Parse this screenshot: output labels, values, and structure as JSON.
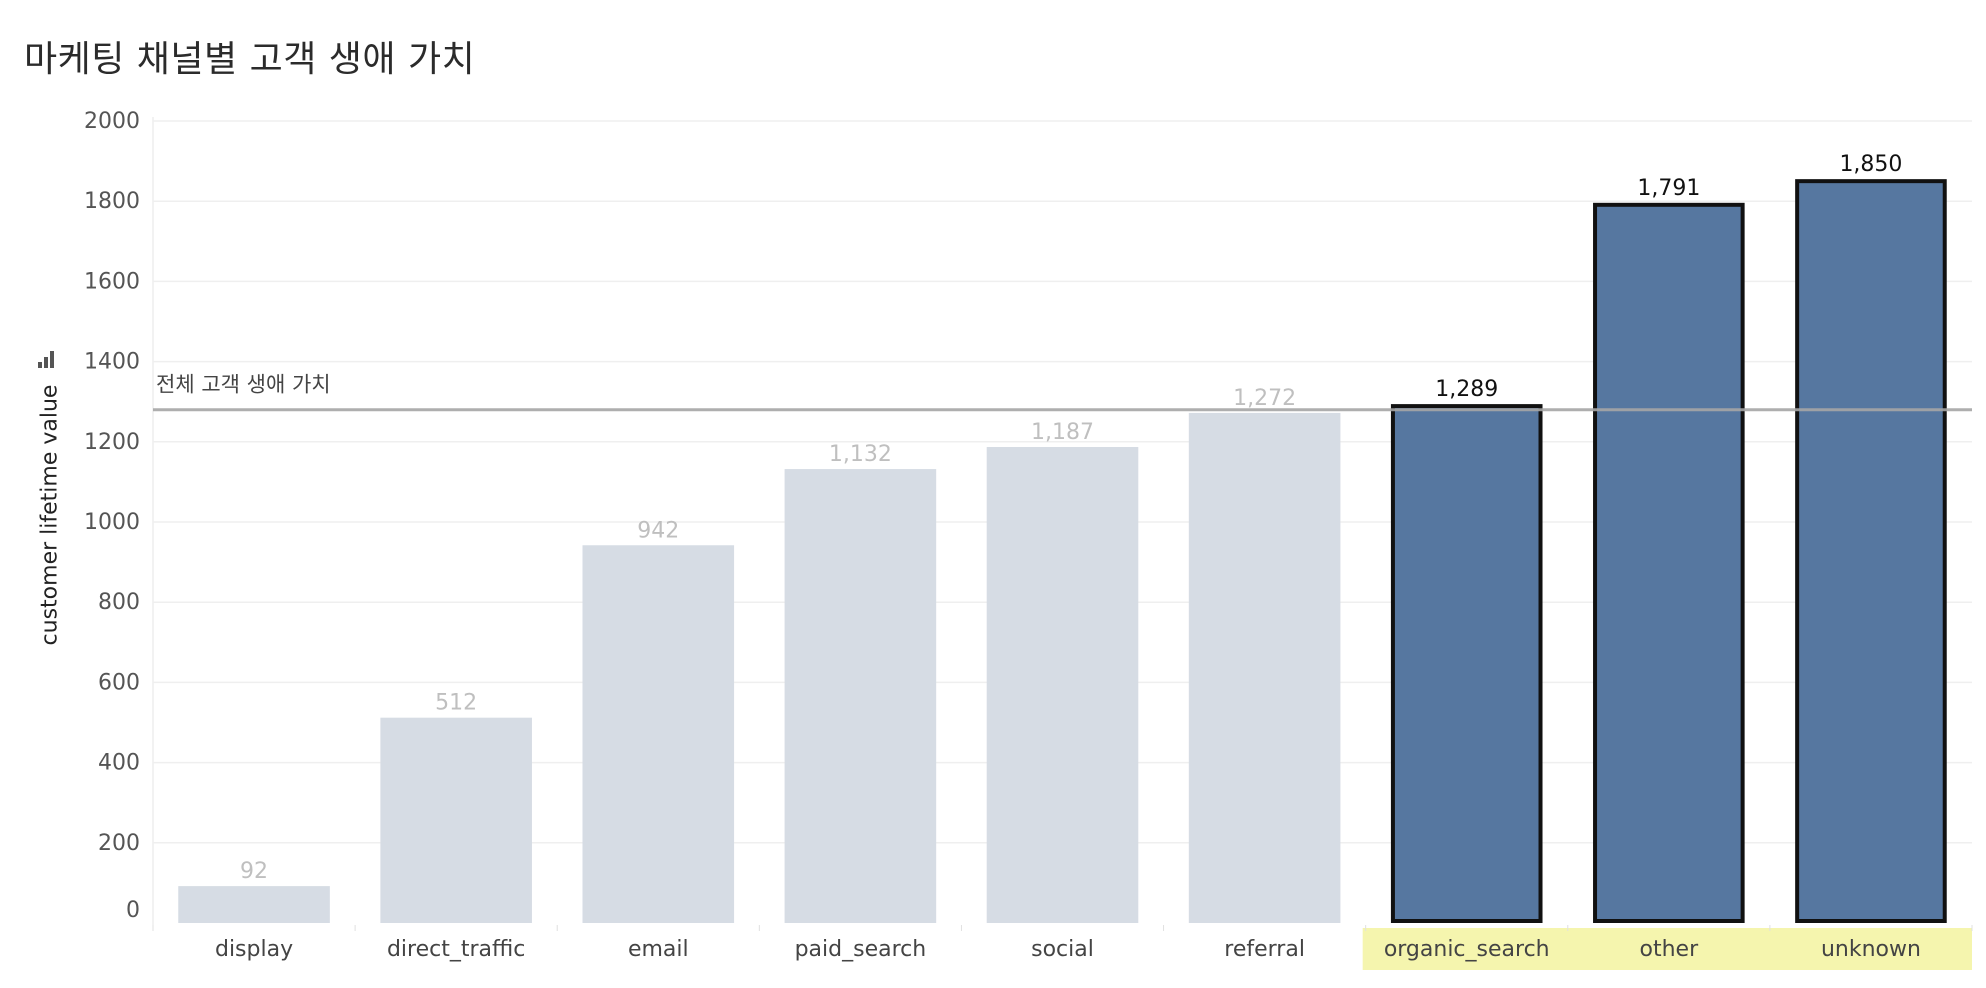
{
  "chart_data": {
    "type": "bar",
    "title": "마케팅 채널별 고객 생애 가치",
    "ylabel": "customer lifetime value",
    "xlabel": "",
    "categories": [
      "display",
      "direct_traffic",
      "email",
      "paid_search",
      "social",
      "referral",
      "organic_search",
      "other",
      "unknown"
    ],
    "values": [
      92,
      512,
      942,
      1132,
      1187,
      1272,
      1289,
      1791,
      1850
    ],
    "value_labels": [
      "92",
      "512",
      "942",
      "1,132",
      "1,187",
      "1,272",
      "1,289",
      "1,791",
      "1,850"
    ],
    "highlighted": [
      false,
      false,
      false,
      false,
      false,
      false,
      true,
      true,
      true
    ],
    "ylim": [
      0,
      2000
    ],
    "yticks": [
      0,
      200,
      400,
      600,
      800,
      1000,
      1200,
      1400,
      1600,
      1800,
      2000
    ],
    "reference_line": {
      "label": "전체 고객 생애 가치",
      "value": 1280
    },
    "grid": true,
    "colors": {
      "muted_bar": "#d6dce4",
      "highlight_bar": "#5677a0",
      "highlight_outline": "#111111",
      "highlight_label_bg": "#f5f5ae",
      "muted_label": "#bfbfbf",
      "reference_line": "#a6a6a6"
    }
  }
}
